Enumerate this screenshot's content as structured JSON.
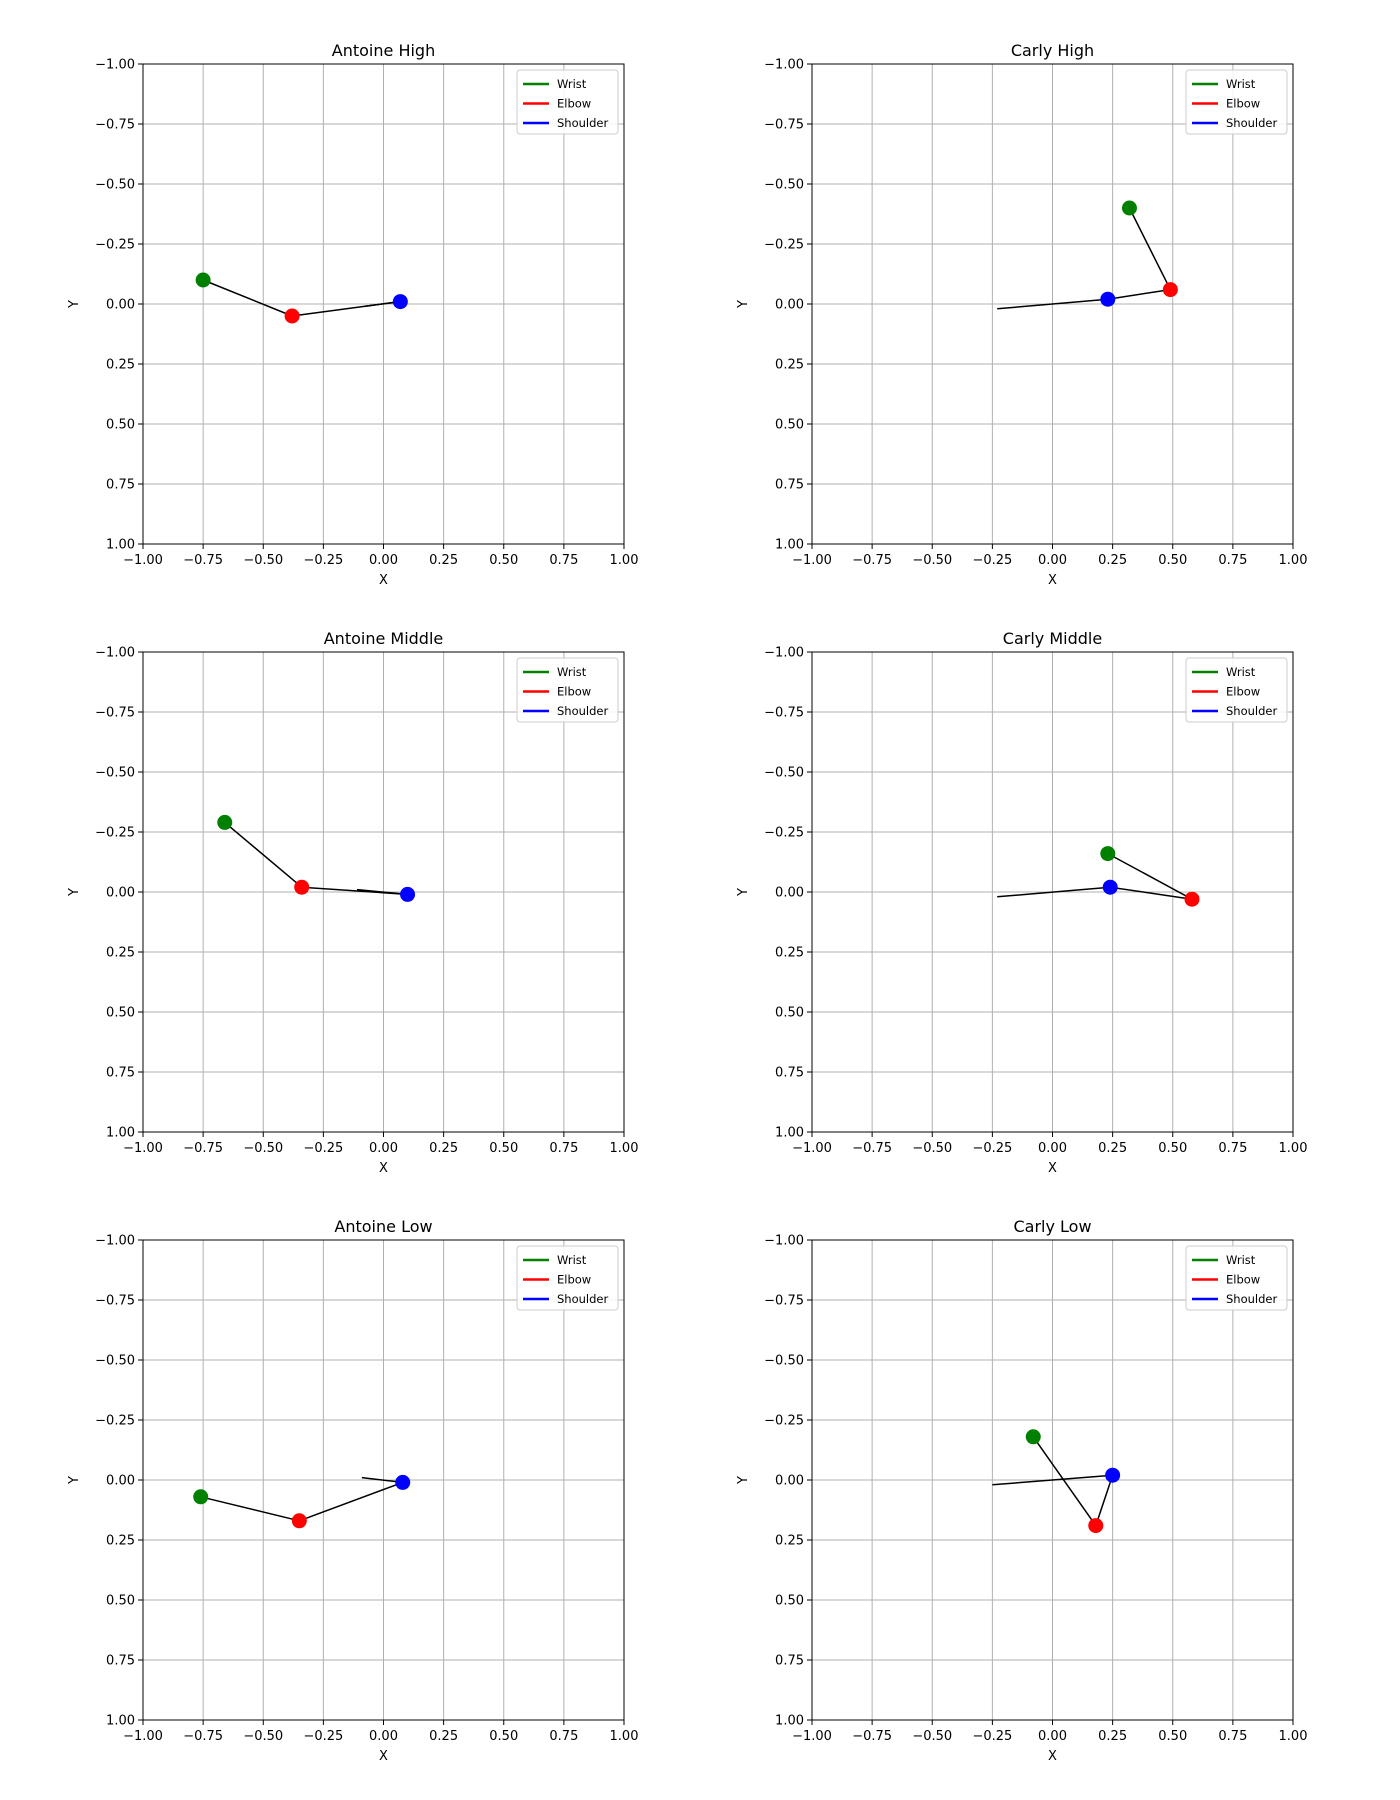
{
  "legend": {
    "placement": "top-right",
    "entries": [
      {
        "label": "Wrist",
        "color": "#008000"
      },
      {
        "label": "Elbow",
        "color": "#ff0000"
      },
      {
        "label": "Shoulder",
        "color": "#0000ff"
      }
    ]
  },
  "colors": {
    "wrist": "#008000",
    "elbow": "#ff0000",
    "shoulder": "#0000ff",
    "segment": "#000000",
    "grid": "#b0b0b0"
  },
  "chart_data": [
    {
      "type": "scatter",
      "title": "Antoine High",
      "xlabel": "X",
      "ylabel": "Y",
      "xlim": [
        -1.0,
        1.0
      ],
      "ylim": [
        -1.0,
        1.0
      ],
      "y_inverted": true,
      "grid": true,
      "xticks": [
        "−1.00",
        "−0.75",
        "−0.50",
        "−0.25",
        "0.00",
        "0.25",
        "0.50",
        "0.75",
        "1.00"
      ],
      "yticks": [
        "−1.00",
        "−0.75",
        "−0.50",
        "−0.25",
        "0.00",
        "0.25",
        "0.50",
        "0.75",
        "1.00"
      ],
      "points": {
        "wrist": [
          -0.75,
          -0.1
        ],
        "elbow": [
          -0.38,
          0.05
        ],
        "shoulder": [
          0.07,
          -0.01
        ]
      },
      "tail": [
        -0.08,
        0.01
      ]
    },
    {
      "type": "scatter",
      "title": "Carly High",
      "xlabel": "X",
      "ylabel": "Y",
      "xlim": [
        -1.0,
        1.0
      ],
      "ylim": [
        -1.0,
        1.0
      ],
      "y_inverted": true,
      "grid": true,
      "xticks": [
        "−1.00",
        "−0.75",
        "−0.50",
        "−0.25",
        "0.00",
        "0.25",
        "0.50",
        "0.75",
        "1.00"
      ],
      "yticks": [
        "−1.00",
        "−0.75",
        "−0.50",
        "−0.25",
        "0.00",
        "0.25",
        "0.50",
        "0.75",
        "1.00"
      ],
      "points": {
        "wrist": [
          0.32,
          -0.4
        ],
        "elbow": [
          0.49,
          -0.06
        ],
        "shoulder": [
          0.23,
          -0.02
        ]
      },
      "tail": [
        -0.23,
        0.02
      ]
    },
    {
      "type": "scatter",
      "title": "Antoine Middle",
      "xlabel": "X",
      "ylabel": "Y",
      "xlim": [
        -1.0,
        1.0
      ],
      "ylim": [
        -1.0,
        1.0
      ],
      "y_inverted": true,
      "grid": true,
      "xticks": [
        "−1.00",
        "−0.75",
        "−0.50",
        "−0.25",
        "0.00",
        "0.25",
        "0.50",
        "0.75",
        "1.00"
      ],
      "yticks": [
        "−1.00",
        "−0.75",
        "−0.50",
        "−0.25",
        "0.00",
        "0.25",
        "0.50",
        "0.75",
        "1.00"
      ],
      "points": {
        "wrist": [
          -0.66,
          -0.29
        ],
        "elbow": [
          -0.34,
          -0.02
        ],
        "shoulder": [
          0.1,
          0.01
        ]
      },
      "tail": [
        -0.11,
        -0.01
      ]
    },
    {
      "type": "scatter",
      "title": "Carly Middle",
      "xlabel": "X",
      "ylabel": "Y",
      "xlim": [
        -1.0,
        1.0
      ],
      "ylim": [
        -1.0,
        1.0
      ],
      "y_inverted": true,
      "grid": true,
      "xticks": [
        "−1.00",
        "−0.75",
        "−0.50",
        "−0.25",
        "0.00",
        "0.25",
        "0.50",
        "0.75",
        "1.00"
      ],
      "yticks": [
        "−1.00",
        "−0.75",
        "−0.50",
        "−0.25",
        "0.00",
        "0.25",
        "0.50",
        "0.75",
        "1.00"
      ],
      "points": {
        "wrist": [
          0.23,
          -0.16
        ],
        "elbow": [
          0.58,
          0.03
        ],
        "shoulder": [
          0.24,
          -0.02
        ]
      },
      "tail": [
        -0.23,
        0.02
      ]
    },
    {
      "type": "scatter",
      "title": "Antoine Low",
      "xlabel": "X",
      "ylabel": "Y",
      "xlim": [
        -1.0,
        1.0
      ],
      "ylim": [
        -1.0,
        1.0
      ],
      "y_inverted": true,
      "grid": true,
      "xticks": [
        "−1.00",
        "−0.75",
        "−0.50",
        "−0.25",
        "0.00",
        "0.25",
        "0.50",
        "0.75",
        "1.00"
      ],
      "yticks": [
        "−1.00",
        "−0.75",
        "−0.50",
        "−0.25",
        "0.00",
        "0.25",
        "0.50",
        "0.75",
        "1.00"
      ],
      "points": {
        "wrist": [
          -0.76,
          0.07
        ],
        "elbow": [
          -0.35,
          0.17
        ],
        "shoulder": [
          0.08,
          0.01
        ]
      },
      "tail": [
        -0.09,
        -0.01
      ]
    },
    {
      "type": "scatter",
      "title": "Carly Low",
      "xlabel": "X",
      "ylabel": "Y",
      "xlim": [
        -1.0,
        1.0
      ],
      "ylim": [
        -1.0,
        1.0
      ],
      "y_inverted": true,
      "grid": true,
      "xticks": [
        "−1.00",
        "−0.75",
        "−0.50",
        "−0.25",
        "0.00",
        "0.25",
        "0.50",
        "0.75",
        "1.00"
      ],
      "yticks": [
        "−1.00",
        "−0.75",
        "−0.50",
        "−0.25",
        "0.00",
        "0.25",
        "0.50",
        "0.75",
        "1.00"
      ],
      "points": {
        "wrist": [
          -0.08,
          -0.18
        ],
        "elbow": [
          0.18,
          0.19
        ],
        "shoulder": [
          0.25,
          -0.02
        ]
      },
      "tail": [
        -0.25,
        0.02
      ]
    }
  ]
}
